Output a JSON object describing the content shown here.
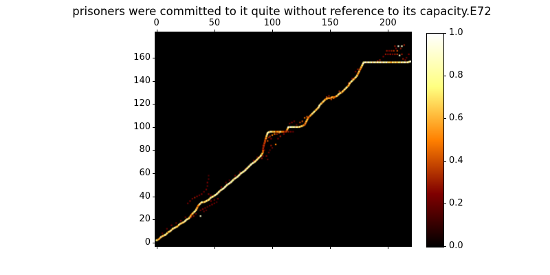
{
  "chart_data": {
    "type": "heatmap",
    "title": "prisoners were committed to it quite without reference to its capacity.E72",
    "xlabel": "",
    "ylabel": "",
    "x_axis": {
      "ticks": [
        0,
        50,
        100,
        150,
        200
      ],
      "range": [
        -1,
        220
      ],
      "label_position": "top"
    },
    "y_axis": {
      "ticks": [
        0,
        20,
        40,
        60,
        80,
        100,
        120,
        140,
        160
      ],
      "range": [
        -3,
        182
      ],
      "direction": "up"
    },
    "colorbar": {
      "min": 0.0,
      "max": 1.0,
      "tick_labels": [
        "0.0",
        "0.2",
        "0.4",
        "0.6",
        "0.8",
        "1.0"
      ],
      "colormap": "afmhot",
      "gradient_stops": [
        "#000000",
        "#800000",
        "#ff8000",
        "#ffff80",
        "#ffffff"
      ]
    },
    "background_value": 0.0,
    "path": [
      [
        0,
        2,
        0.85
      ],
      [
        2,
        3,
        0.6
      ],
      [
        4,
        5,
        0.9
      ],
      [
        6,
        6,
        0.7
      ],
      [
        8,
        7,
        0.95
      ],
      [
        10,
        9,
        0.65
      ],
      [
        12,
        10,
        0.9
      ],
      [
        14,
        12,
        0.8
      ],
      [
        16,
        13,
        0.95
      ],
      [
        18,
        14,
        0.7
      ],
      [
        20,
        16,
        0.9
      ],
      [
        22,
        17,
        0.75
      ],
      [
        24,
        18,
        0.9
      ],
      [
        26,
        20,
        0.95
      ],
      [
        28,
        21,
        0.8
      ],
      [
        30,
        24,
        0.6
      ],
      [
        32,
        26,
        0.85
      ],
      [
        34,
        28,
        0.9
      ],
      [
        35,
        30,
        0.7
      ],
      [
        36,
        32,
        0.5
      ],
      [
        37,
        33,
        0.85
      ],
      [
        39,
        35,
        0.95
      ],
      [
        41,
        35,
        0.7
      ],
      [
        43,
        36,
        0.9
      ],
      [
        45,
        37,
        0.8
      ],
      [
        47,
        39,
        0.95
      ],
      [
        49,
        40,
        0.85
      ],
      [
        52,
        42,
        1
      ],
      [
        55,
        45,
        0.9
      ],
      [
        58,
        47,
        1
      ],
      [
        61,
        50,
        0.95
      ],
      [
        64,
        52,
        1
      ],
      [
        67,
        55,
        0.9
      ],
      [
        70,
        57,
        1
      ],
      [
        73,
        60,
        0.95
      ],
      [
        76,
        62,
        1
      ],
      [
        79,
        65,
        0.9
      ],
      [
        82,
        68,
        1
      ],
      [
        85,
        70,
        0.9
      ],
      [
        88,
        73,
        0.85
      ],
      [
        90,
        75,
        0.9
      ],
      [
        92,
        78,
        0.6
      ],
      [
        92,
        81,
        0.35
      ],
      [
        93,
        85,
        0.4
      ],
      [
        94,
        89,
        0.45
      ],
      [
        95,
        92,
        0.7
      ],
      [
        96,
        95,
        1
      ],
      [
        98,
        96,
        0.9
      ],
      [
        101,
        96,
        0.75
      ],
      [
        104,
        96,
        0.55
      ],
      [
        107,
        96,
        0.8
      ],
      [
        110,
        96,
        0.45
      ],
      [
        112,
        96,
        0.35
      ],
      [
        113,
        98,
        0.6
      ],
      [
        114,
        100,
        1
      ],
      [
        117,
        100,
        1
      ],
      [
        120,
        100,
        0.95
      ],
      [
        123,
        100,
        0.85
      ],
      [
        126,
        101,
        0.75
      ],
      [
        128,
        102,
        0.5
      ],
      [
        129,
        104,
        0.6
      ],
      [
        130,
        106,
        0.75
      ],
      [
        131,
        108,
        0.6
      ],
      [
        132,
        109,
        0.5
      ],
      [
        134,
        111,
        0.8
      ],
      [
        136,
        113,
        0.9
      ],
      [
        138,
        115,
        0.7
      ],
      [
        140,
        117,
        0.85
      ],
      [
        141,
        119,
        0.95
      ],
      [
        143,
        121,
        0.7
      ],
      [
        145,
        123,
        0.85
      ],
      [
        146,
        124,
        0.6
      ],
      [
        148,
        125,
        0.75
      ],
      [
        150,
        125,
        0.55
      ],
      [
        152,
        126,
        0.7
      ],
      [
        154,
        126,
        0.5
      ],
      [
        156,
        127,
        0.75
      ],
      [
        158,
        129,
        0.9
      ],
      [
        160,
        130,
        0.65
      ],
      [
        162,
        132,
        0.8
      ],
      [
        164,
        134,
        0.9
      ],
      [
        166,
        136,
        0.65
      ],
      [
        167,
        138,
        0.8
      ],
      [
        169,
        140,
        0.9
      ],
      [
        171,
        142,
        0.7
      ],
      [
        173,
        144,
        0.9
      ],
      [
        174,
        146,
        0.6
      ],
      [
        175,
        148,
        0.75
      ],
      [
        176,
        150,
        0.55
      ],
      [
        177,
        152,
        0.7
      ],
      [
        178,
        154,
        0.85
      ],
      [
        179,
        156,
        1
      ],
      [
        183,
        156,
        1
      ],
      [
        187,
        156,
        0.95
      ],
      [
        191,
        156,
        1
      ],
      [
        195,
        156,
        0.95
      ],
      [
        199,
        156,
        1
      ],
      [
        202,
        156,
        0.7
      ],
      [
        205,
        156,
        0.85
      ],
      [
        208,
        156,
        0.75
      ],
      [
        211,
        156,
        0.9
      ],
      [
        214,
        156,
        1
      ],
      [
        217,
        156,
        0.95
      ],
      [
        220,
        157,
        0.9
      ]
    ],
    "scatter": [
      [
        5,
        8,
        0.2
      ],
      [
        9,
        12,
        0.2
      ],
      [
        13,
        15,
        0.25
      ],
      [
        17,
        17,
        0.2
      ],
      [
        21,
        19,
        0.25
      ],
      [
        25,
        22,
        0.2
      ],
      [
        27,
        34,
        0.2
      ],
      [
        29,
        36,
        0.25
      ],
      [
        31,
        38,
        0.22
      ],
      [
        33,
        39,
        0.3
      ],
      [
        35,
        40,
        0.25
      ],
      [
        37,
        41,
        0.2
      ],
      [
        39,
        42,
        0.25
      ],
      [
        41,
        44,
        0.2
      ],
      [
        43,
        46,
        0.25
      ],
      [
        44,
        49,
        0.2
      ],
      [
        44,
        52,
        0.25
      ],
      [
        45,
        55,
        0.18
      ],
      [
        45,
        58,
        0.15
      ],
      [
        30,
        22,
        0.25
      ],
      [
        32,
        23,
        0.3
      ],
      [
        34,
        25,
        0.2
      ],
      [
        38,
        23,
        0.9
      ],
      [
        38,
        28,
        0.2
      ],
      [
        40,
        29,
        0.25
      ],
      [
        42,
        30,
        0.2
      ],
      [
        44,
        31,
        0.16
      ],
      [
        41,
        27,
        0.2
      ],
      [
        43,
        28,
        0.16
      ],
      [
        46,
        32,
        0.2
      ],
      [
        48,
        33,
        0.25
      ],
      [
        50,
        34,
        0.2
      ],
      [
        52,
        35,
        0.16
      ],
      [
        47,
        36,
        0.25
      ],
      [
        50,
        37,
        0.2
      ],
      [
        53,
        38,
        0.22
      ],
      [
        45,
        42,
        0.25
      ],
      [
        47,
        41,
        0.2
      ],
      [
        56,
        48,
        0.25
      ],
      [
        60,
        52,
        0.2
      ],
      [
        63,
        54,
        0.18
      ],
      [
        68,
        58,
        0.25
      ],
      [
        72,
        61,
        0.2
      ],
      [
        77,
        64,
        0.22
      ],
      [
        81,
        67,
        0.2
      ],
      [
        84,
        71,
        0.25
      ],
      [
        87,
        74,
        0.2
      ],
      [
        91,
        73,
        0.28
      ],
      [
        92,
        75,
        0.22
      ],
      [
        93,
        80,
        0.25
      ],
      [
        92,
        84,
        0.2
      ],
      [
        94,
        87,
        0.3
      ],
      [
        96,
        88,
        0.4
      ],
      [
        95,
        90,
        0.35
      ],
      [
        97,
        91,
        0.3
      ],
      [
        98,
        92,
        0.35
      ],
      [
        100,
        93,
        0.5
      ],
      [
        102,
        94,
        0.45
      ],
      [
        104,
        94,
        0.3
      ],
      [
        106,
        95,
        0.4
      ],
      [
        99,
        90,
        0.25
      ],
      [
        103,
        85,
        0.5
      ],
      [
        99,
        84,
        0.3
      ],
      [
        97,
        78,
        0.2
      ],
      [
        95,
        75,
        0.25
      ],
      [
        96,
        72,
        0.2
      ],
      [
        98,
        80,
        0.15
      ],
      [
        100,
        82,
        0.2
      ],
      [
        105,
        90,
        0.25
      ],
      [
        107,
        92,
        0.3
      ],
      [
        110,
        94,
        0.25
      ],
      [
        114,
        96,
        0.3
      ],
      [
        116,
        96,
        0.25
      ],
      [
        118,
        96,
        0.2
      ],
      [
        115,
        103,
        0.2
      ],
      [
        117,
        104,
        0.25
      ],
      [
        119,
        105,
        0.2
      ],
      [
        121,
        102,
        0.2
      ],
      [
        124,
        104,
        0.35
      ],
      [
        126,
        105,
        0.4
      ],
      [
        128,
        108,
        0.45
      ],
      [
        130,
        109,
        0.4
      ],
      [
        147,
        126,
        0.35
      ],
      [
        151,
        124,
        0.4
      ],
      [
        153,
        125,
        0.45
      ],
      [
        149,
        127,
        0.3
      ],
      [
        158,
        131,
        0.35
      ],
      [
        161,
        131,
        0.3
      ],
      [
        166,
        138,
        0.3
      ],
      [
        169,
        142,
        0.25
      ],
      [
        172,
        148,
        0.25
      ],
      [
        174,
        150,
        0.3
      ],
      [
        191,
        157,
        0.3
      ],
      [
        193,
        158,
        0.3
      ],
      [
        196,
        161,
        0.25
      ],
      [
        198,
        163,
        0.3
      ],
      [
        200,
        163,
        0.25
      ],
      [
        202,
        163,
        0.3
      ],
      [
        204,
        163,
        0.25
      ],
      [
        206,
        163,
        0.3
      ],
      [
        208,
        163,
        0.35
      ],
      [
        210,
        162,
        0.9
      ],
      [
        212,
        163,
        0.3
      ],
      [
        199,
        166,
        0.3
      ],
      [
        201,
        166,
        0.25
      ],
      [
        203,
        166,
        0.3
      ],
      [
        205,
        166,
        0.35
      ],
      [
        208,
        166,
        0.4
      ],
      [
        206,
        170,
        0.3
      ],
      [
        209,
        170,
        0.95
      ],
      [
        212,
        170,
        0.9
      ],
      [
        214,
        171,
        0.3
      ],
      [
        207,
        168,
        0.25
      ],
      [
        211,
        168,
        0.3
      ],
      [
        213,
        159,
        0.3
      ],
      [
        215,
        158,
        0.25
      ],
      [
        216,
        160,
        0.2
      ],
      [
        218,
        163,
        0.25
      ]
    ]
  },
  "layout_note": ""
}
